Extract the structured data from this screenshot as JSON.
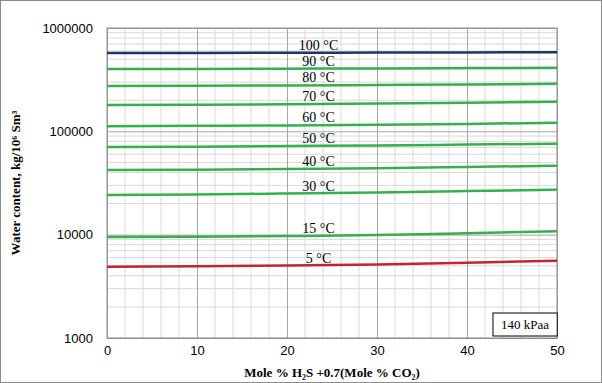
{
  "chart_data": {
    "type": "line",
    "x_label": "Mole % H₂S +0.7(Mole % CO₂)",
    "y_label": "Water content, kg/10⁶ Sm³",
    "x": [
      0,
      10,
      20,
      30,
      40,
      50
    ],
    "series": [
      {
        "name": "100 °C",
        "color": "#1f3564",
        "values": [
          573000,
          574000,
          576000,
          578000,
          580000,
          583000
        ]
      },
      {
        "name": "90 °C",
        "color": "#35b04e",
        "values": [
          401000,
          402000,
          404000,
          406000,
          409000,
          412000
        ]
      },
      {
        "name": "80 °C",
        "color": "#35b04e",
        "values": [
          275000,
          276000,
          278000,
          281000,
          284000,
          288000
        ]
      },
      {
        "name": "70 °C",
        "color": "#35b04e",
        "values": [
          180000,
          181000,
          183000,
          186000,
          189000,
          193000
        ]
      },
      {
        "name": "60 °C",
        "color": "#35b04e",
        "values": [
          112000,
          113000,
          114000,
          116000,
          118000,
          121000
        ]
      },
      {
        "name": "50 °C",
        "color": "#35b04e",
        "values": [
          70500,
          71000,
          72000,
          73000,
          74500,
          76000
        ]
      },
      {
        "name": "40 °C",
        "color": "#35b04e",
        "values": [
          42200,
          42600,
          43200,
          44000,
          45200,
          46500
        ]
      },
      {
        "name": "30 °C",
        "color": "#35b04e",
        "values": [
          24200,
          24500,
          25000,
          25600,
          26400,
          27300
        ]
      },
      {
        "name": "15 °C",
        "color": "#35b04e",
        "values": [
          9480,
          9560,
          9700,
          9900,
          10300,
          10800
        ]
      },
      {
        "name": "5 °C",
        "color": "#c0272d",
        "values": [
          4900,
          4950,
          5030,
          5150,
          5350,
          5600
        ]
      }
    ],
    "xlim": [
      0,
      50
    ],
    "ylim": [
      1000,
      1000000
    ],
    "xticks": [
      0,
      10,
      20,
      30,
      40,
      50
    ],
    "yticks": [
      1000,
      10000,
      100000,
      1000000
    ],
    "log": "y",
    "grid": true,
    "annotation": "140 kPaa"
  }
}
